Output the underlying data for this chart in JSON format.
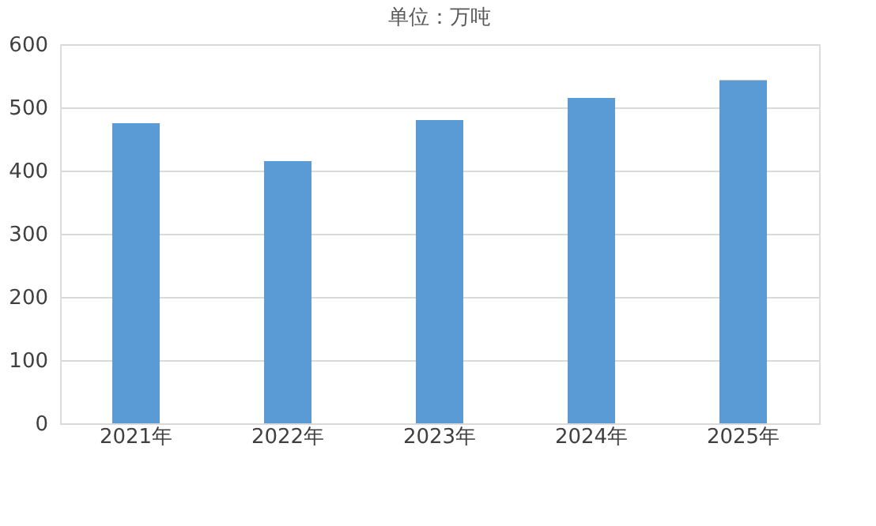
{
  "chart_data": {
    "type": "bar",
    "title": "单位：万吨",
    "categories": [
      "2021年",
      "2022年",
      "2023年",
      "2024年",
      "2025年"
    ],
    "values": [
      475,
      415,
      480,
      515,
      543
    ],
    "color": "#5b9bd5",
    "ylim": [
      0,
      600
    ],
    "yticks": [
      0,
      100,
      200,
      300,
      400,
      500,
      600
    ],
    "grid": "y"
  }
}
